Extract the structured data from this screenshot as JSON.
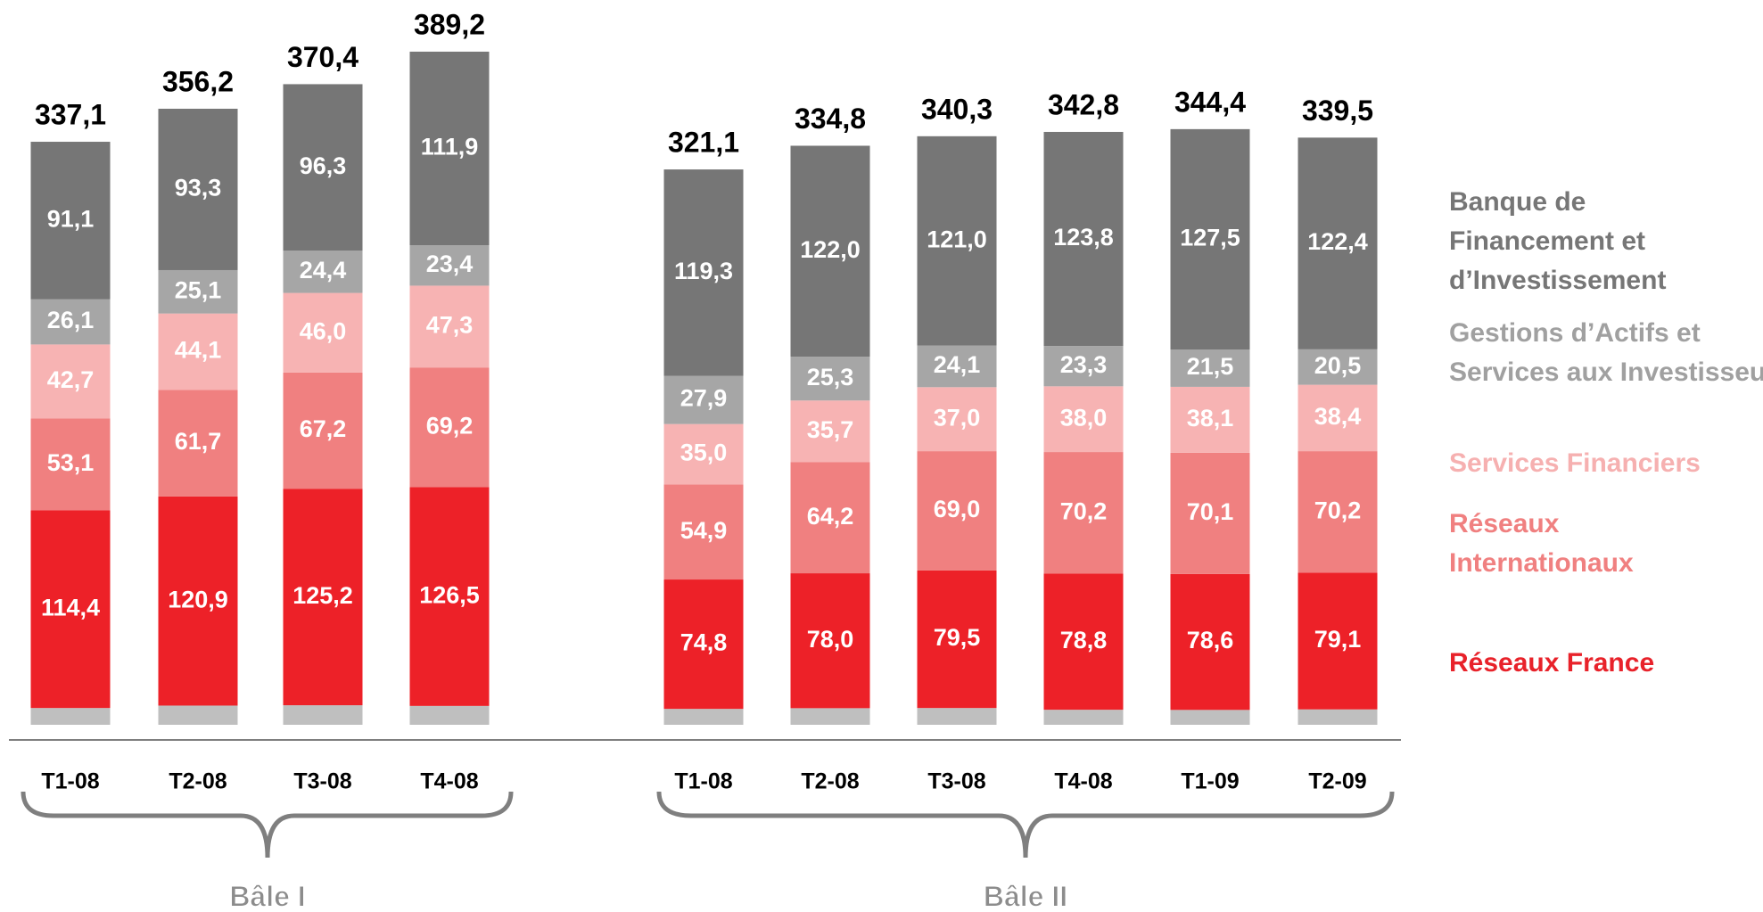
{
  "chart_data": {
    "type": "bar",
    "stacked": true,
    "ylim": [
      0,
      400
    ],
    "legend": "right",
    "series": [
      {
        "color": "#bfbfbf"
      },
      {
        "name": "Réseaux France",
        "color": "#ed2128"
      },
      {
        "name": "Réseaux Internationaux",
        "color": "#f08080"
      },
      {
        "name": "Services Financiers",
        "color": "#f7b3b3"
      },
      {
        "name": "Gestions d’Actifs et Services aux Investisseurs",
        "color": "#a6a6a6"
      },
      {
        "name": "Banque de Financement et d’Investissement",
        "color": "#767676"
      }
    ],
    "groups": [
      {
        "label": "Bâle I",
        "categories": [
          "T1-08",
          "T2-08",
          "T3-08",
          "T4-08"
        ],
        "series": [
          {
            "values": [
              9.7,
              11.1,
              11.3,
              10.9
            ]
          },
          {
            "values": [
              114.4,
              120.9,
              125.2,
              126.5
            ],
            "value_labels": [
              "114,4",
              "120,9",
              "125,2",
              "126,5"
            ]
          },
          {
            "values": [
              53.1,
              61.7,
              67.2,
              69.2
            ],
            "value_labels": [
              "53,1",
              "61,7",
              "67,2",
              "69,2"
            ]
          },
          {
            "values": [
              42.7,
              44.1,
              46.0,
              47.3
            ],
            "value_labels": [
              "42,7",
              "44,1",
              "46,0",
              "47,3"
            ]
          },
          {
            "values": [
              26.1,
              25.1,
              24.4,
              23.4
            ],
            "value_labels": [
              "26,1",
              "25,1",
              "24,4",
              "23,4"
            ]
          },
          {
            "values": [
              91.1,
              93.3,
              96.3,
              111.9
            ],
            "value_labels": [
              "91,1",
              "93,3",
              "96,3",
              "111,9"
            ]
          }
        ],
        "totals": [
          337.1,
          356.2,
          370.4,
          389.2
        ],
        "total_labels": [
          "337,1",
          "356,2",
          "370,4",
          "389,2"
        ]
      },
      {
        "label": "Bâle II",
        "categories": [
          "T1-08",
          "T2-08",
          "T3-08",
          "T4-08",
          "T1-09",
          "T2-09"
        ],
        "series": [
          {
            "values": [
              9.2,
              9.6,
              9.7,
              8.7,
              8.6,
              8.9
            ]
          },
          {
            "values": [
              74.8,
              78.0,
              79.5,
              78.8,
              78.6,
              79.1
            ],
            "value_labels": [
              "74,8",
              "78,0",
              "79,5",
              "78,8",
              "78,6",
              "79,1"
            ]
          },
          {
            "values": [
              54.9,
              64.2,
              69.0,
              70.2,
              70.1,
              70.2
            ],
            "value_labels": [
              "54,9",
              "64,2",
              "69,0",
              "70,2",
              "70,1",
              "70,2"
            ]
          },
          {
            "values": [
              35.0,
              35.7,
              37.0,
              38.0,
              38.1,
              38.4
            ],
            "value_labels": [
              "35,0",
              "35,7",
              "37,0",
              "38,0",
              "38,1",
              "38,4"
            ]
          },
          {
            "values": [
              27.9,
              25.3,
              24.1,
              23.3,
              21.5,
              20.5
            ],
            "value_labels": [
              "27,9",
              "25,3",
              "24,1",
              "23,3",
              "21,5",
              "20,5"
            ]
          },
          {
            "values": [
              119.3,
              122.0,
              121.0,
              123.8,
              127.5,
              122.4
            ],
            "value_labels": [
              "119,3",
              "122,0",
              "121,0",
              "123,8",
              "127,5",
              "122,4"
            ]
          }
        ],
        "totals": [
          321.1,
          334.8,
          340.3,
          342.8,
          344.4,
          339.5
        ],
        "total_labels": [
          "321,1",
          "334,8",
          "340,3",
          "342,8",
          "344,4",
          "339,5"
        ]
      }
    ]
  }
}
